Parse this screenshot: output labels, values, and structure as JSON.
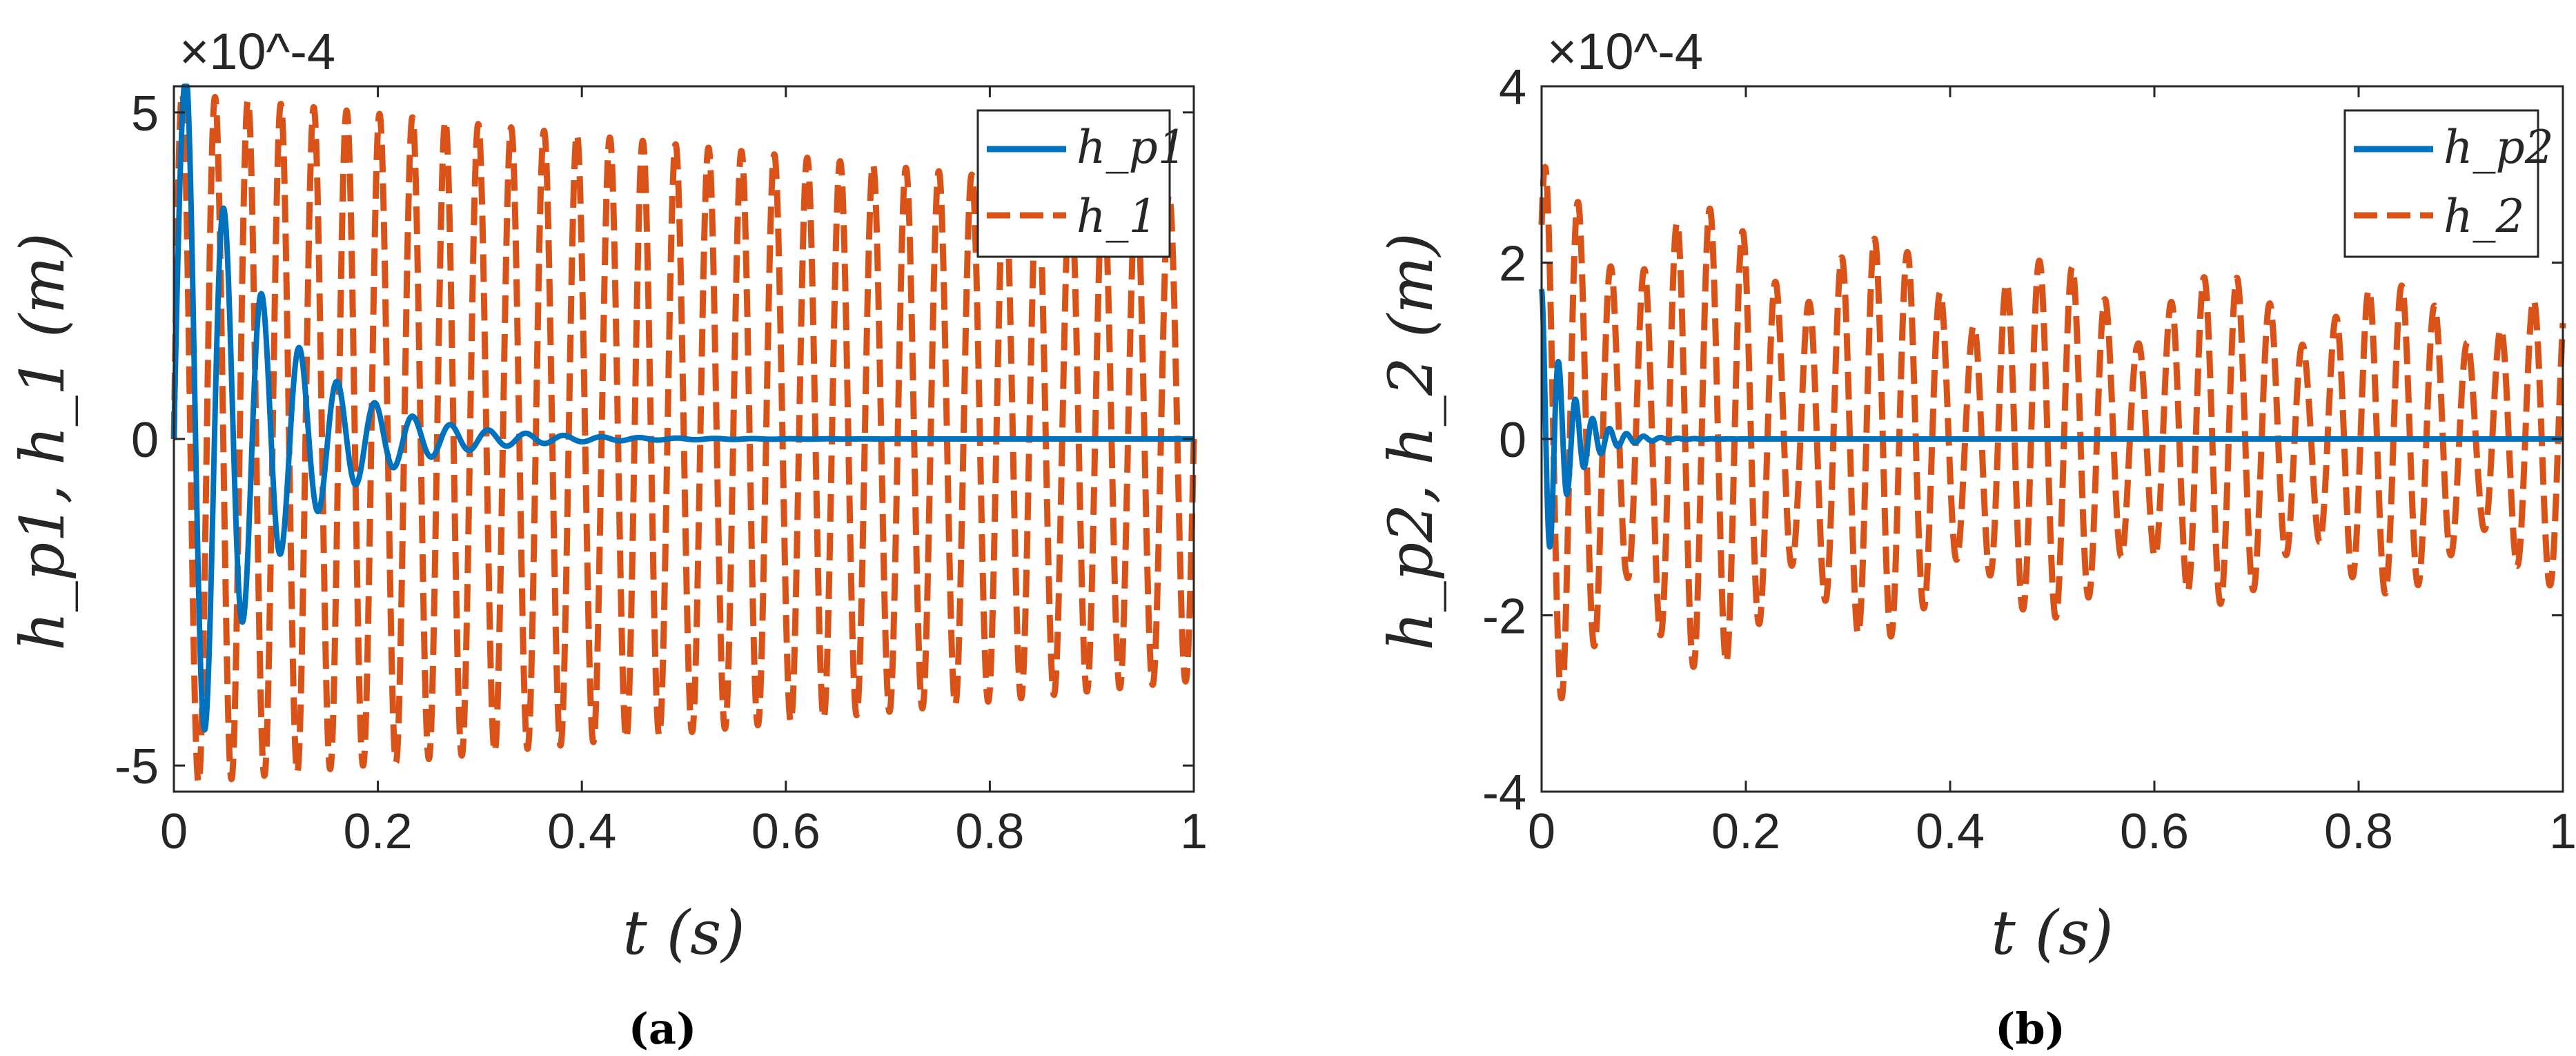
{
  "chart_data": [
    {
      "panel_label": "(a)",
      "type": "line",
      "xlabel": "t (s)",
      "ylabel": "h_p1, h_1 (m)",
      "y_exponent": "×10^-4",
      "xlim": [
        0,
        1
      ],
      "ylim": [
        -5.4,
        5.4
      ],
      "xticks": [
        "0",
        "0.2",
        "0.4",
        "0.6",
        "0.8",
        "1"
      ],
      "yticks": [
        "-5",
        "0",
        "5"
      ],
      "legend": [
        "h_p1",
        "h_1"
      ],
      "legend_position": "top-right",
      "series": [
        {
          "name": "h_p1",
          "style": "solid",
          "color": "#0072BD",
          "model": "damped sine",
          "amplitude": 5.6,
          "peak_time": 0.012,
          "frequency_hz": 27,
          "decay_per_s": 12.5,
          "settles_by": 0.4
        },
        {
          "name": "h_1",
          "style": "dashed",
          "color": "#D95319",
          "model": "sustained oscillation, slowly decaying envelope",
          "amplitude_start": 5.3,
          "amplitude_end": 3.7,
          "frequency_hz": 31
        }
      ]
    },
    {
      "panel_label": "(b)",
      "type": "line",
      "xlabel": "t (s)",
      "ylabel": "h_p2, h_2 (m)",
      "y_exponent": "×10^-4",
      "xlim": [
        0,
        1
      ],
      "ylim": [
        -4,
        4
      ],
      "xticks": [
        "0",
        "0.2",
        "0.4",
        "0.6",
        "0.8",
        "1"
      ],
      "yticks": [
        "-4",
        "-2",
        "0",
        "2",
        "4"
      ],
      "legend": [
        "h_p2",
        "h_2"
      ],
      "legend_position": "top-right",
      "series": [
        {
          "name": "h_p2",
          "style": "solid",
          "color": "#0072BD",
          "model": "fast damped oscillation",
          "amplitude": 1.7,
          "frequency_hz": 60,
          "decay_per_s": 40,
          "settles_by": 0.1
        },
        {
          "name": "h_2",
          "style": "dashed",
          "color": "#D95319",
          "model": "beating oscillation",
          "carrier_hz": 31,
          "beat_hz": 6,
          "max_amplitude": 3.1,
          "late_amplitude": 1.5
        }
      ]
    }
  ]
}
